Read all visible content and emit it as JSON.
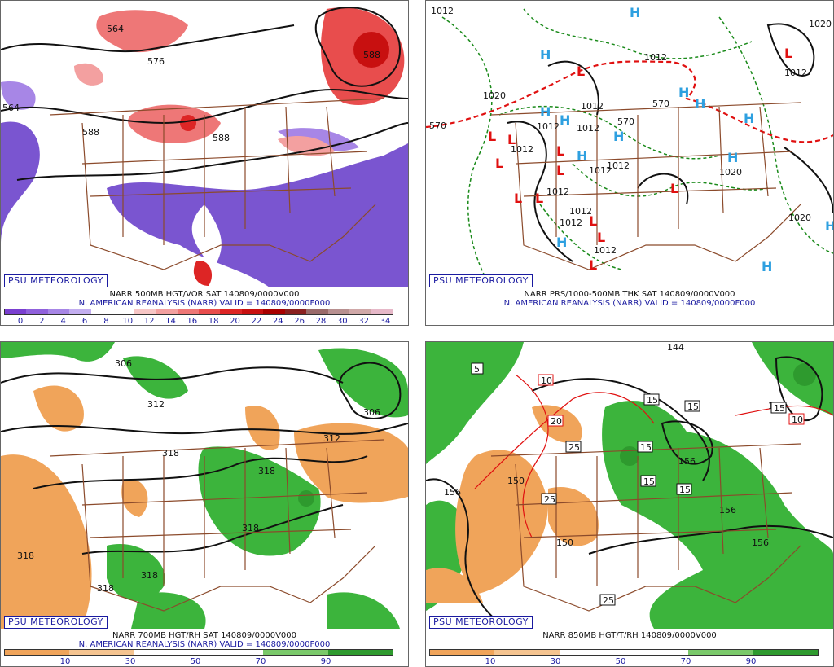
{
  "panels": [
    {
      "id": "vor500",
      "badge": "PSU METEOROLOGY",
      "line1": "NARR 500MB HGT/VOR SAT 140809/0000V000",
      "line2": "N. AMERICAN REANALYSIS (NARR) VALID = 140809/0000F000",
      "scale_colors": [
        "#7a3fd0",
        "#9061dc",
        "#a786e6",
        "#c3aef0",
        "#ffffff",
        "#ffffff",
        "#f7c6c6",
        "#f3a0a0",
        "#ee7777",
        "#e84d4d",
        "#dd2525",
        "#c81010",
        "#a80000",
        "#8a2020",
        "#9a6a6a",
        "#b89090",
        "#d0a8a8",
        "#e6b8c8"
      ],
      "scale_ticks": [
        "0",
        "2",
        "4",
        "6",
        "8",
        "10",
        "12",
        "14",
        "16",
        "18",
        "20",
        "22",
        "24",
        "26",
        "28",
        "30",
        "32",
        "34"
      ],
      "contour_labels": [
        "564",
        "576",
        "588",
        "564",
        "588",
        "588"
      ]
    },
    {
      "id": "thk",
      "badge": "PSU METEOROLOGY",
      "line1": "NARR PRS/1000-500MB THK SAT 140809/0000V000",
      "line2": "N. AMERICAN REANALYSIS (NARR) VALID = 140809/0000F000",
      "isobar_labels": [
        "1012",
        "1012",
        "1020",
        "1012",
        "1012",
        "1012",
        "1012",
        "1012",
        "1012",
        "1012",
        "1012",
        "1020",
        "1012",
        "1020",
        "1020",
        "1012",
        "1012"
      ],
      "thk_labels": [
        "570",
        "570",
        "570"
      ],
      "high_symbol": "H",
      "low_symbol": "L"
    },
    {
      "id": "rh700",
      "badge": "PSU METEOROLOGY",
      "line1": "NARR 700MB HGT/RH SAT 140809/0000V000",
      "line2": "N. AMERICAN REANALYSIS (NARR) VALID = 140809/0000F000",
      "scale_colors": [
        "#f0a45a",
        "#f5c490",
        "#ffffff",
        "#ffffff",
        "#7ac96a",
        "#2e9a2e"
      ],
      "scale_ticks": [
        "10",
        "30",
        "50",
        "70",
        "90"
      ],
      "contour_labels": [
        "306",
        "312",
        "306",
        "318",
        "312",
        "318",
        "318",
        "318",
        "318",
        "318"
      ]
    },
    {
      "id": "t850",
      "badge": "PSU METEOROLOGY",
      "line1": "NARR 850MB HGT/T/RH 140809/0000V000",
      "scale_colors": [
        "#f0a45a",
        "#f5c490",
        "#ffffff",
        "#ffffff",
        "#7ac96a",
        "#2e9a2e"
      ],
      "scale_ticks": [
        "10",
        "30",
        "50",
        "70",
        "90"
      ],
      "contour_labels": [
        "144",
        "156",
        "150",
        "150",
        "156",
        "156",
        "156",
        "156"
      ],
      "boxed_temps": [
        "5",
        "10",
        "15",
        "15",
        "20",
        "15",
        "25",
        "25",
        "15",
        "15",
        "25",
        "15",
        "10"
      ]
    }
  ],
  "colors": {
    "border": "#8b4a2b",
    "contour": "#111111",
    "thk_red": "#e01010",
    "isobar_green": "#1a8a1a",
    "high_blue": "#2ea0e0",
    "purple": "#7a55d0",
    "orange": "#f0a45a",
    "green": "#3cb43c"
  }
}
